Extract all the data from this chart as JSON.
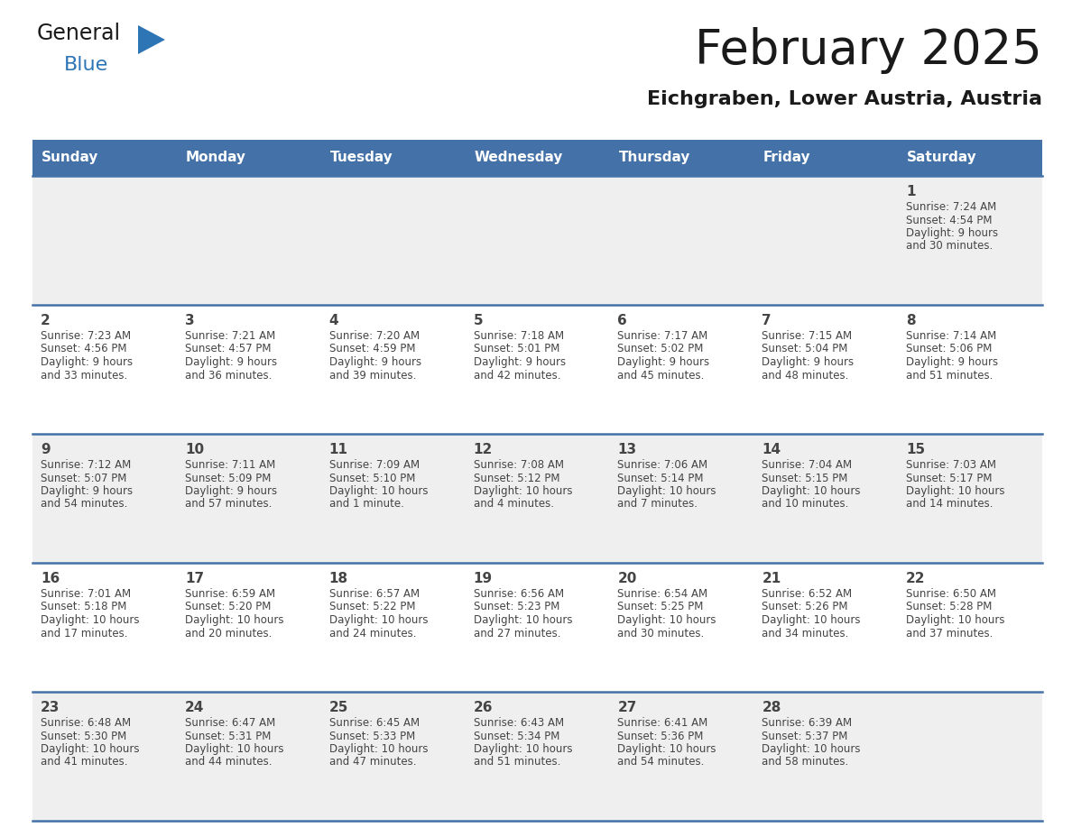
{
  "title": "February 2025",
  "subtitle": "Eichgraben, Lower Austria, Austria",
  "days_of_week": [
    "Sunday",
    "Monday",
    "Tuesday",
    "Wednesday",
    "Thursday",
    "Friday",
    "Saturday"
  ],
  "header_bg": "#4472a8",
  "header_text": "#ffffff",
  "row_bg_even": "#efefef",
  "row_bg_odd": "#ffffff",
  "separator_color": "#4472a8",
  "text_color": "#444444",
  "title_color": "#1a1a1a",
  "logo_general_color": "#1a1a1a",
  "logo_blue_color": "#2e75b6",
  "calendar_data": [
    {
      "day": 1,
      "col": 6,
      "row": 0,
      "sunrise": "7:24 AM",
      "sunset": "4:54 PM",
      "daylight": "9 hours and 30 minutes."
    },
    {
      "day": 2,
      "col": 0,
      "row": 1,
      "sunrise": "7:23 AM",
      "sunset": "4:56 PM",
      "daylight": "9 hours and 33 minutes."
    },
    {
      "day": 3,
      "col": 1,
      "row": 1,
      "sunrise": "7:21 AM",
      "sunset": "4:57 PM",
      "daylight": "9 hours and 36 minutes."
    },
    {
      "day": 4,
      "col": 2,
      "row": 1,
      "sunrise": "7:20 AM",
      "sunset": "4:59 PM",
      "daylight": "9 hours and 39 minutes."
    },
    {
      "day": 5,
      "col": 3,
      "row": 1,
      "sunrise": "7:18 AM",
      "sunset": "5:01 PM",
      "daylight": "9 hours and 42 minutes."
    },
    {
      "day": 6,
      "col": 4,
      "row": 1,
      "sunrise": "7:17 AM",
      "sunset": "5:02 PM",
      "daylight": "9 hours and 45 minutes."
    },
    {
      "day": 7,
      "col": 5,
      "row": 1,
      "sunrise": "7:15 AM",
      "sunset": "5:04 PM",
      "daylight": "9 hours and 48 minutes."
    },
    {
      "day": 8,
      "col": 6,
      "row": 1,
      "sunrise": "7:14 AM",
      "sunset": "5:06 PM",
      "daylight": "9 hours and 51 minutes."
    },
    {
      "day": 9,
      "col": 0,
      "row": 2,
      "sunrise": "7:12 AM",
      "sunset": "5:07 PM",
      "daylight": "9 hours and 54 minutes."
    },
    {
      "day": 10,
      "col": 1,
      "row": 2,
      "sunrise": "7:11 AM",
      "sunset": "5:09 PM",
      "daylight": "9 hours and 57 minutes."
    },
    {
      "day": 11,
      "col": 2,
      "row": 2,
      "sunrise": "7:09 AM",
      "sunset": "5:10 PM",
      "daylight": "10 hours and 1 minute."
    },
    {
      "day": 12,
      "col": 3,
      "row": 2,
      "sunrise": "7:08 AM",
      "sunset": "5:12 PM",
      "daylight": "10 hours and 4 minutes."
    },
    {
      "day": 13,
      "col": 4,
      "row": 2,
      "sunrise": "7:06 AM",
      "sunset": "5:14 PM",
      "daylight": "10 hours and 7 minutes."
    },
    {
      "day": 14,
      "col": 5,
      "row": 2,
      "sunrise": "7:04 AM",
      "sunset": "5:15 PM",
      "daylight": "10 hours and 10 minutes."
    },
    {
      "day": 15,
      "col": 6,
      "row": 2,
      "sunrise": "7:03 AM",
      "sunset": "5:17 PM",
      "daylight": "10 hours and 14 minutes."
    },
    {
      "day": 16,
      "col": 0,
      "row": 3,
      "sunrise": "7:01 AM",
      "sunset": "5:18 PM",
      "daylight": "10 hours and 17 minutes."
    },
    {
      "day": 17,
      "col": 1,
      "row": 3,
      "sunrise": "6:59 AM",
      "sunset": "5:20 PM",
      "daylight": "10 hours and 20 minutes."
    },
    {
      "day": 18,
      "col": 2,
      "row": 3,
      "sunrise": "6:57 AM",
      "sunset": "5:22 PM",
      "daylight": "10 hours and 24 minutes."
    },
    {
      "day": 19,
      "col": 3,
      "row": 3,
      "sunrise": "6:56 AM",
      "sunset": "5:23 PM",
      "daylight": "10 hours and 27 minutes."
    },
    {
      "day": 20,
      "col": 4,
      "row": 3,
      "sunrise": "6:54 AM",
      "sunset": "5:25 PM",
      "daylight": "10 hours and 30 minutes."
    },
    {
      "day": 21,
      "col": 5,
      "row": 3,
      "sunrise": "6:52 AM",
      "sunset": "5:26 PM",
      "daylight": "10 hours and 34 minutes."
    },
    {
      "day": 22,
      "col": 6,
      "row": 3,
      "sunrise": "6:50 AM",
      "sunset": "5:28 PM",
      "daylight": "10 hours and 37 minutes."
    },
    {
      "day": 23,
      "col": 0,
      "row": 4,
      "sunrise": "6:48 AM",
      "sunset": "5:30 PM",
      "daylight": "10 hours and 41 minutes."
    },
    {
      "day": 24,
      "col": 1,
      "row": 4,
      "sunrise": "6:47 AM",
      "sunset": "5:31 PM",
      "daylight": "10 hours and 44 minutes."
    },
    {
      "day": 25,
      "col": 2,
      "row": 4,
      "sunrise": "6:45 AM",
      "sunset": "5:33 PM",
      "daylight": "10 hours and 47 minutes."
    },
    {
      "day": 26,
      "col": 3,
      "row": 4,
      "sunrise": "6:43 AM",
      "sunset": "5:34 PM",
      "daylight": "10 hours and 51 minutes."
    },
    {
      "day": 27,
      "col": 4,
      "row": 4,
      "sunrise": "6:41 AM",
      "sunset": "5:36 PM",
      "daylight": "10 hours and 54 minutes."
    },
    {
      "day": 28,
      "col": 5,
      "row": 4,
      "sunrise": "6:39 AM",
      "sunset": "5:37 PM",
      "daylight": "10 hours and 58 minutes."
    }
  ]
}
